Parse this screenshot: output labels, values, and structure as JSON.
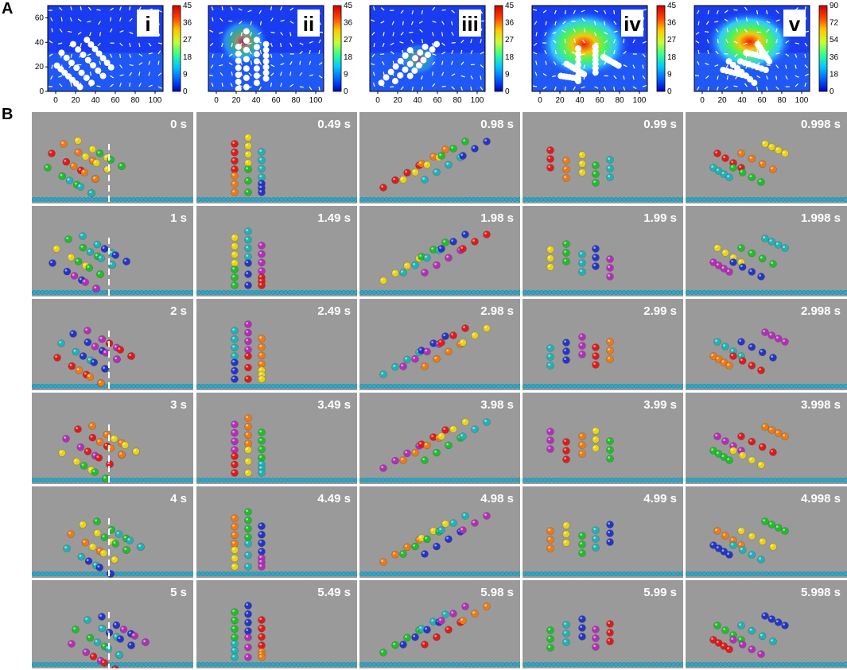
{
  "section_a": {
    "label": "A",
    "y_ticks": [
      "0",
      "20",
      "40",
      "60"
    ],
    "x_ticks": [
      "0",
      "20",
      "40",
      "60",
      "80",
      "100"
    ],
    "panels": [
      {
        "roman": "i",
        "cbar_ticks": [
          "0",
          "9",
          "18",
          "27",
          "36",
          "45"
        ],
        "pattern": "diag_low"
      },
      {
        "roman": "ii",
        "cbar_ticks": [
          "0",
          "9",
          "18",
          "27",
          "36",
          "45"
        ],
        "pattern": "vertical"
      },
      {
        "roman": "iii",
        "cbar_ticks": [
          "0",
          "9",
          "18",
          "27",
          "36",
          "45"
        ],
        "pattern": "diag_up"
      },
      {
        "roman": "iv",
        "cbar_ticks": [
          "0",
          "9",
          "18",
          "27",
          "36",
          "45"
        ],
        "pattern": "mixed_hot"
      },
      {
        "roman": "v",
        "cbar_ticks": [
          "0",
          "18",
          "36",
          "54",
          "72",
          "90"
        ],
        "pattern": "mixed_hot2"
      }
    ]
  },
  "section_b": {
    "label": "B",
    "colors": {
      "red": "#e01b1b",
      "orange": "#f07a12",
      "yellow": "#e8d21a",
      "green": "#1fbe2a",
      "cyan": "#1fb3b6",
      "blue": "#2535c8",
      "purple": "#b42fb8",
      "floor": "#2aa7c9",
      "background": "#9a9a9a"
    },
    "times": [
      [
        "0 s",
        "0.49 s",
        "0.98 s",
        "0.99 s",
        "0.998 s"
      ],
      [
        "1 s",
        "1.49 s",
        "1.98 s",
        "1.99 s",
        "1.998 s"
      ],
      [
        "2 s",
        "2.49 s",
        "2.98 s",
        "2.99 s",
        "2.998 s"
      ],
      [
        "3 s",
        "3.49 s",
        "3.98 s",
        "3.99 s",
        "3.998 s"
      ],
      [
        "4 s",
        "4.49 s",
        "4.98 s",
        "4.99 s",
        "4.998 s"
      ],
      [
        "5 s",
        "5.49 s",
        "5.98 s",
        "5.99 s",
        "5.998 s"
      ]
    ],
    "column_patterns": [
      "tilted_left",
      "vertical",
      "tilted_right",
      "short_vertical",
      "broken_tilted"
    ],
    "dashed_marker_column": 0
  }
}
